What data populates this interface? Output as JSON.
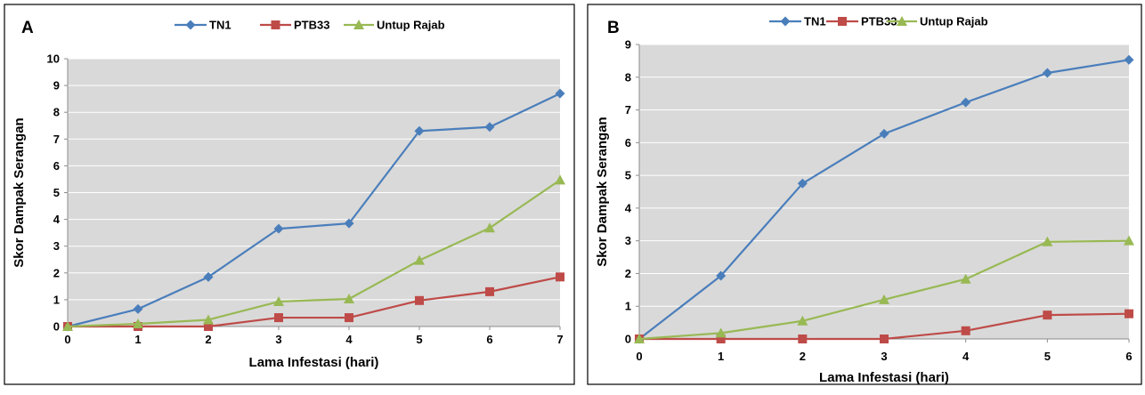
{
  "chart_data": [
    {
      "type": "line",
      "panel_label": "A",
      "xlabel": "Lama Infestasi (hari)",
      "ylabel": "Skor Dampak Serangan",
      "x": [
        0,
        1,
        2,
        3,
        4,
        5,
        6,
        7
      ],
      "xlim": [
        0,
        7
      ],
      "ylim": [
        0,
        10
      ],
      "yticks": [
        0,
        1,
        2,
        3,
        4,
        5,
        6,
        7,
        8,
        9,
        10
      ],
      "grid": true,
      "legend_position": "top",
      "series": [
        {
          "name": "TN1",
          "color": "#4a7ebb",
          "marker": "diamond",
          "values": [
            0,
            0.65,
            1.85,
            3.65,
            3.85,
            7.3,
            7.45,
            8.7
          ]
        },
        {
          "name": "PTB33",
          "color": "#be4b48",
          "marker": "square",
          "values": [
            0,
            0,
            0,
            0.33,
            0.33,
            0.97,
            1.3,
            1.85
          ]
        },
        {
          "name": "Untup Rajab",
          "color": "#98b954",
          "marker": "triangle",
          "values": [
            0,
            0.1,
            0.25,
            0.93,
            1.03,
            2.47,
            3.68,
            5.47
          ]
        }
      ]
    },
    {
      "type": "line",
      "panel_label": "B",
      "xlabel": "Lama Infestasi (hari)",
      "ylabel": "Skor Dampak Serangan",
      "x": [
        0,
        1,
        2,
        3,
        4,
        5,
        6
      ],
      "xlim": [
        0,
        6
      ],
      "ylim": [
        0,
        9
      ],
      "yticks": [
        0,
        1,
        2,
        3,
        4,
        5,
        6,
        7,
        8,
        9
      ],
      "grid": true,
      "legend_position": "top",
      "series": [
        {
          "name": "TN1",
          "color": "#4a7ebb",
          "marker": "diamond",
          "values": [
            0,
            1.93,
            4.75,
            6.27,
            7.23,
            8.13,
            8.53
          ]
        },
        {
          "name": "PTB33",
          "color": "#be4b48",
          "marker": "square",
          "values": [
            0,
            0,
            0,
            0,
            0.25,
            0.73,
            0.77
          ]
        },
        {
          "name": "Untup Rajab",
          "color": "#98b954",
          "marker": "triangle",
          "values": [
            0,
            0.18,
            0.55,
            1.2,
            1.83,
            2.97,
            3.0
          ]
        }
      ]
    }
  ]
}
